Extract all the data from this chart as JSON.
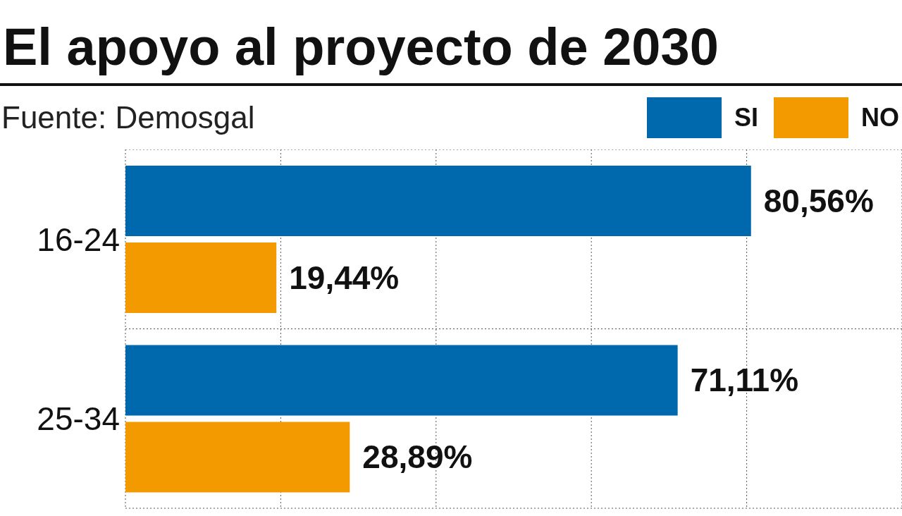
{
  "chart_data": {
    "type": "bar",
    "orientation": "horizontal",
    "title": "El apoyo al proyecto de 2030",
    "annotations": [
      "Fuente: Demosgal"
    ],
    "categories": [
      "16-24",
      "25-34"
    ],
    "series": [
      {
        "name": "SI",
        "color": "#0068ad",
        "values": [
          80.56,
          71.11
        ],
        "value_labels": [
          "80,56%",
          "71,11%"
        ]
      },
      {
        "name": "NO",
        "color": "#f39a00",
        "values": [
          19.44,
          28.89
        ],
        "value_labels": [
          "19,44%",
          "28,89%"
        ]
      }
    ],
    "xlim": [
      0,
      100
    ],
    "xticks": [
      {
        "value": 20,
        "label": null
      },
      {
        "value": 40,
        "label": null
      },
      {
        "value": 60,
        "label": null
      },
      {
        "value": 80,
        "label": null
      }
    ],
    "tick_labels": "y",
    "grid": true,
    "legend": "top right"
  }
}
